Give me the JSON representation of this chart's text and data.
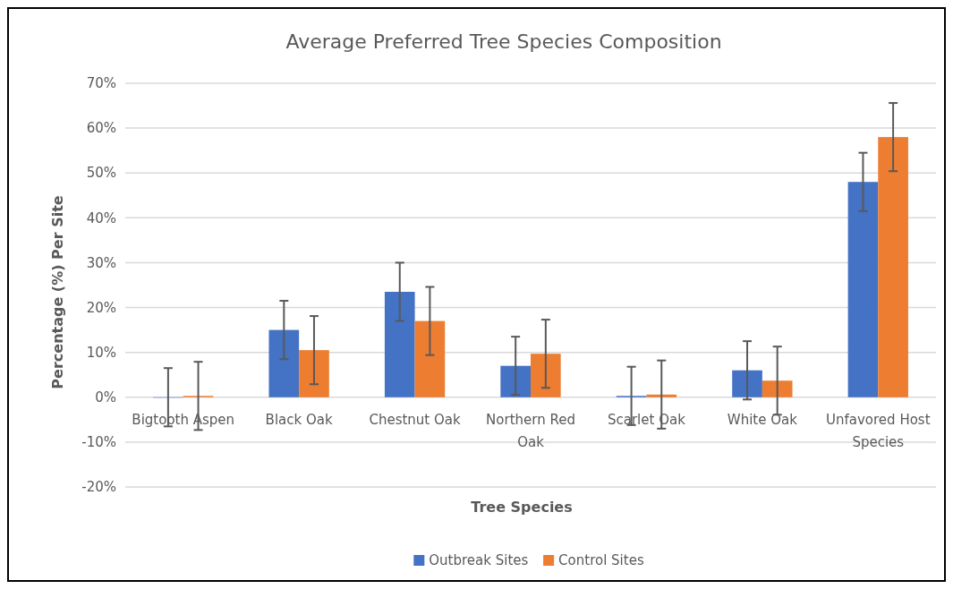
{
  "chart_data": {
    "type": "bar",
    "title": "Average Preferred Tree Species Composition",
    "xlabel": "Tree Species",
    "ylabel": "Percentage (%) Per Site",
    "categories": [
      "Bigtooth Aspen",
      "Black Oak",
      "Chestnut Oak",
      "Northern Red Oak",
      "Scarlet Oak",
      "White Oak",
      "Unfavored Host Species"
    ],
    "series": [
      {
        "name": "Outbreak Sites",
        "color": "#4472c4",
        "values": [
          0,
          15,
          23.5,
          7,
          0.3,
          6,
          48
        ],
        "errors": [
          6.5,
          6.5,
          6.5,
          6.5,
          6.5,
          6.5,
          6.5
        ]
      },
      {
        "name": "Control Sites",
        "color": "#ed7d31",
        "values": [
          0.3,
          10.5,
          17,
          9.7,
          0.6,
          3.7,
          58
        ],
        "errors": [
          7.6,
          7.6,
          7.6,
          7.6,
          7.6,
          7.6,
          7.6
        ]
      }
    ],
    "ylim": [
      -20,
      70
    ],
    "yticks": [
      {
        "value": -20,
        "label": "-20%"
      },
      {
        "value": -10,
        "label": "-10%"
      },
      {
        "value": 0,
        "label": "0%"
      },
      {
        "value": 10,
        "label": "10%"
      },
      {
        "value": 20,
        "label": "20%"
      },
      {
        "value": 30,
        "label": "30%"
      },
      {
        "value": 40,
        "label": "40%"
      },
      {
        "value": 50,
        "label": "50%"
      },
      {
        "value": 60,
        "label": "60%"
      },
      {
        "value": 70,
        "label": "70%"
      }
    ],
    "grid": "y",
    "legend": "bottom"
  }
}
